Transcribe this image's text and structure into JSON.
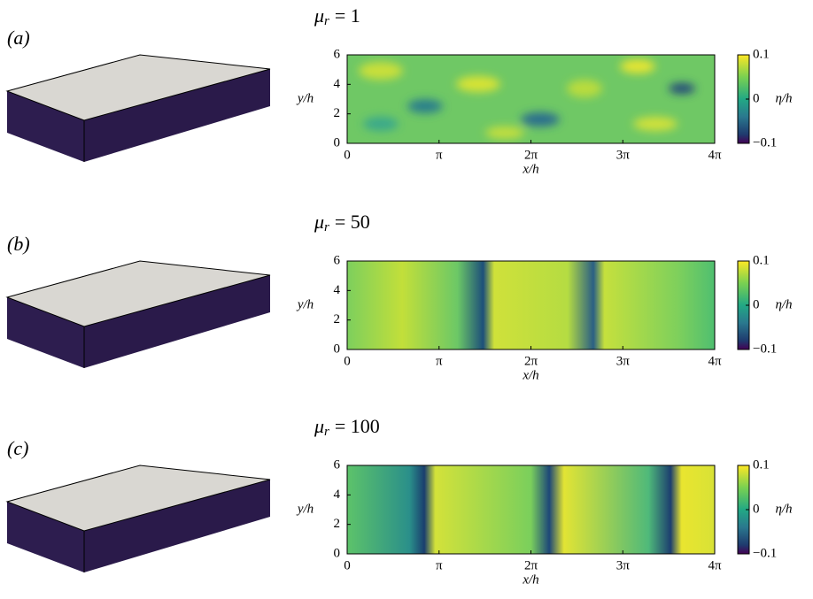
{
  "chart_data": [
    {
      "type": "heatmap",
      "panel_label": "(a)",
      "title": {
        "symbol": "μ",
        "subscript": "r",
        "rest": "= 1"
      },
      "xlabel": "x/h",
      "ylabel": "y/h",
      "xlim": [
        0,
        12.566
      ],
      "ylim": [
        0,
        6
      ],
      "xticks": [
        0,
        {
          "value": 3.1416,
          "label": "π"
        },
        {
          "value": 6.2832,
          "label": "2π"
        },
        {
          "value": 9.4248,
          "label": "3π"
        },
        {
          "value": 12.566,
          "label": "4π"
        }
      ],
      "yticks": [
        0,
        2,
        4,
        6
      ],
      "colorbar": {
        "label": "η/h",
        "clim": [
          -0.1,
          0.1
        ],
        "ticks": [
          {
            "value": -0.1,
            "label": "−0.1"
          },
          0,
          0.1
        ]
      }
    },
    {
      "type": "heatmap",
      "panel_label": "(b)",
      "title": {
        "symbol": "μ",
        "subscript": "r",
        "rest": "= 50"
      },
      "xlabel": "x/h",
      "ylabel": "y/h",
      "xlim": [
        0,
        12.566
      ],
      "ylim": [
        0,
        6
      ],
      "xticks": [
        0,
        {
          "value": 3.1416,
          "label": "π"
        },
        {
          "value": 6.2832,
          "label": "2π"
        },
        {
          "value": 9.4248,
          "label": "3π"
        },
        {
          "value": 12.566,
          "label": "4π"
        }
      ],
      "yticks": [
        0,
        2,
        4,
        6
      ],
      "colorbar": {
        "label": "η/h",
        "clim": [
          -0.1,
          0.1
        ],
        "ticks": [
          {
            "value": -0.1,
            "label": "−0.1"
          },
          0,
          0.1
        ]
      }
    },
    {
      "type": "heatmap",
      "panel_label": "(c)",
      "title": {
        "symbol": "μ",
        "subscript": "r",
        "rest": "= 100"
      },
      "xlabel": "x/h",
      "ylabel": "y/h",
      "xlim": [
        0,
        12.566
      ],
      "ylim": [
        0,
        6
      ],
      "xticks": [
        0,
        {
          "value": 3.1416,
          "label": "π"
        },
        {
          "value": 6.2832,
          "label": "2π"
        },
        {
          "value": 9.4248,
          "label": "3π"
        },
        {
          "value": 12.566,
          "label": "4π"
        }
      ],
      "yticks": [
        0,
        2,
        4,
        6
      ],
      "colorbar": {
        "label": "η/h",
        "clim": [
          -0.1,
          0.1
        ],
        "ticks": [
          {
            "value": -0.1,
            "label": "−0.1"
          },
          0,
          0.1
        ]
      }
    }
  ]
}
